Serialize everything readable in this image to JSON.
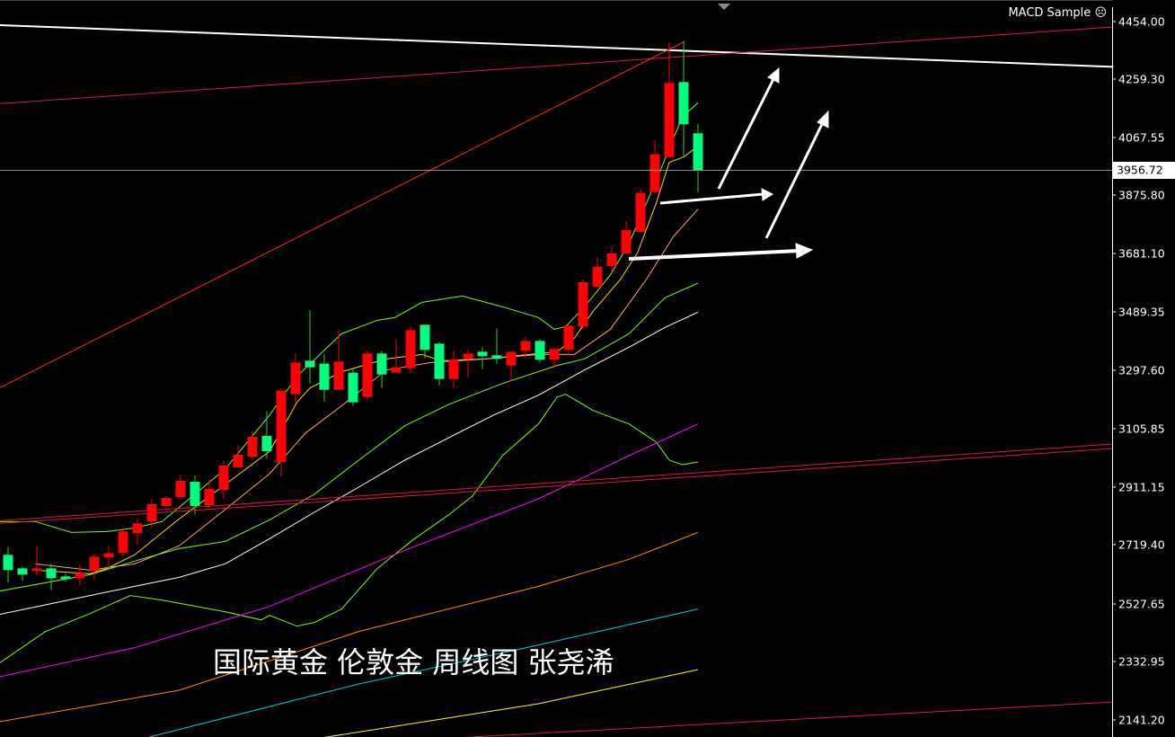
{
  "expert_label": "MACD Sample",
  "expert_icon": "sad-face-icon",
  "overlay_title": "国际黄金 伦敦金 周线图 张尧浠",
  "colors": {
    "background": "#000000",
    "bull_candle": "#ff0000",
    "bear_candle": "#00ff7f",
    "axis": "#ffffff",
    "grid_price_line": "#8c8c8c"
  },
  "chart_data": {
    "type": "candlestick",
    "title": "",
    "current_price": "3956.72",
    "y_ticks": [
      "4454.00",
      "4259.30",
      "4067.55",
      "3875.80",
      "3681.10",
      "3489.35",
      "3297.60",
      "3105.85",
      "2911.15",
      "2719.40",
      "2527.65",
      "2332.95",
      "2141.20"
    ],
    "ylim": [
      2060,
      4530
    ],
    "grid": false,
    "candles": [
      [
        2674,
        2701,
        2581,
        2623
      ],
      [
        2629,
        2635,
        2587,
        2608
      ],
      [
        2620,
        2704,
        2605,
        2629
      ],
      [
        2629,
        2644,
        2556,
        2596
      ],
      [
        2602,
        2611,
        2584,
        2593
      ],
      [
        2596,
        2644,
        2572,
        2614
      ],
      [
        2620,
        2677,
        2590,
        2668
      ],
      [
        2665,
        2704,
        2629,
        2680
      ],
      [
        2680,
        2764,
        2668,
        2752
      ],
      [
        2746,
        2797,
        2707,
        2779
      ],
      [
        2785,
        2861,
        2764,
        2843
      ],
      [
        2837,
        2870,
        2834,
        2864
      ],
      [
        2867,
        2939,
        2861,
        2921
      ],
      [
        2918,
        2939,
        2809,
        2837
      ],
      [
        2840,
        2927,
        2831,
        2894
      ],
      [
        2891,
        2987,
        2861,
        2972
      ],
      [
        2966,
        3041,
        2966,
        3008
      ],
      [
        3002,
        3087,
        2990,
        3068
      ],
      [
        3071,
        3153,
        2996,
        3020
      ],
      [
        2984,
        3231,
        2936,
        3222
      ],
      [
        3210,
        3346,
        3177,
        3316
      ],
      [
        3322,
        3490,
        3246,
        3300
      ],
      [
        3312,
        3343,
        3186,
        3225
      ],
      [
        3225,
        3427,
        3225,
        3319
      ],
      [
        3282,
        3294,
        3171,
        3183
      ],
      [
        3201,
        3355,
        3192,
        3346
      ],
      [
        3346,
        3355,
        3231,
        3276
      ],
      [
        3282,
        3394,
        3282,
        3300
      ],
      [
        3297,
        3436,
        3282,
        3424
      ],
      [
        3442,
        3442,
        3331,
        3358
      ],
      [
        3379,
        3385,
        3240,
        3261
      ],
      [
        3261,
        3355,
        3231,
        3325
      ],
      [
        3328,
        3358,
        3267,
        3346
      ],
      [
        3352,
        3367,
        3294,
        3337
      ],
      [
        3340,
        3430,
        3312,
        3328
      ],
      [
        3306,
        3352,
        3255,
        3352
      ],
      [
        3355,
        3400,
        3331,
        3388
      ],
      [
        3388,
        3394,
        3316,
        3325
      ],
      [
        3325,
        3367,
        3297,
        3361
      ],
      [
        3358,
        3442,
        3340,
        3439
      ],
      [
        3436,
        3593,
        3427,
        3584
      ],
      [
        3569,
        3668,
        3569,
        3635
      ],
      [
        3638,
        3701,
        3623,
        3680
      ],
      [
        3680,
        3788,
        3677,
        3758
      ],
      [
        3752,
        3894,
        3752,
        3882
      ],
      [
        3885,
        4059,
        3879,
        4011
      ],
      [
        4002,
        4385,
        3999,
        4249
      ],
      [
        4252,
        4388,
        4005,
        4111
      ],
      [
        4081,
        4111,
        3885,
        3956.72
      ]
    ],
    "candle_fields": [
      "open",
      "high",
      "low",
      "close"
    ],
    "indicator_lines": [
      {
        "color": "#ffd700",
        "points": [
          [
            1.9,
            2623
          ],
          [
            5.7,
            2611
          ],
          [
            6.9,
            2629
          ],
          [
            8.8,
            2674
          ],
          [
            11.9,
            2794
          ],
          [
            15.7,
            2930
          ],
          [
            18.2,
            3020
          ],
          [
            20.1,
            3183
          ],
          [
            21,
            3231
          ],
          [
            23.2,
            3285
          ],
          [
            26.3,
            3328
          ],
          [
            28.8,
            3343
          ],
          [
            30.1,
            3322
          ],
          [
            33.2,
            3328
          ],
          [
            36.9,
            3346
          ],
          [
            38.2,
            3352
          ],
          [
            39.4,
            3397
          ],
          [
            40.7,
            3487
          ],
          [
            42.6,
            3593
          ],
          [
            43.8,
            3683
          ],
          [
            45.1,
            3849
          ],
          [
            46,
            3984
          ],
          [
            47,
            4002
          ],
          [
            48,
            4038
          ]
        ]
      },
      {
        "color": "#ffa07a",
        "points": [
          [
            1.9,
            2644
          ],
          [
            5.7,
            2623
          ],
          [
            8.8,
            2644
          ],
          [
            11.9,
            2704
          ],
          [
            15.1,
            2825
          ],
          [
            18.2,
            2945
          ],
          [
            20.7,
            3081
          ],
          [
            23.2,
            3171
          ],
          [
            26.3,
            3291
          ],
          [
            29.4,
            3316
          ],
          [
            33.2,
            3328
          ],
          [
            36.9,
            3343
          ],
          [
            39.4,
            3343
          ],
          [
            41.9,
            3427
          ],
          [
            44.4,
            3593
          ],
          [
            46.3,
            3737
          ],
          [
            48,
            3828
          ]
        ]
      },
      {
        "color": "#7cfc00",
        "points": [
          [
            -0.6,
            2785
          ],
          [
            1.9,
            2785
          ],
          [
            4.4,
            2749
          ],
          [
            6.9,
            2752
          ],
          [
            8.8,
            2764
          ],
          [
            10.7,
            2785
          ],
          [
            15.1,
            2960
          ],
          [
            18.2,
            3141
          ],
          [
            20.1,
            3270
          ],
          [
            23.2,
            3412
          ],
          [
            25.7,
            3457
          ],
          [
            26.9,
            3466
          ],
          [
            28.8,
            3517
          ],
          [
            31.6,
            3538
          ],
          [
            34.4,
            3502
          ],
          [
            36.9,
            3466
          ],
          [
            38,
            3427
          ],
          [
            38.8,
            3436
          ],
          [
            40.1,
            3502
          ],
          [
            41.9,
            3608
          ],
          [
            43.2,
            3713
          ],
          [
            45.1,
            3924
          ],
          [
            46.9,
            4135
          ],
          [
            48,
            4183
          ]
        ]
      },
      {
        "color": "#7cfc00",
        "points": [
          [
            -0.6,
            2553
          ],
          [
            5.7,
            2608
          ],
          [
            8.8,
            2653
          ],
          [
            11.9,
            2695
          ],
          [
            15.1,
            2719
          ],
          [
            18.2,
            2791
          ],
          [
            21.3,
            2876
          ],
          [
            24.4,
            2990
          ],
          [
            27.6,
            3105
          ],
          [
            30.7,
            3177
          ],
          [
            34.4,
            3246
          ],
          [
            38.2,
            3306
          ],
          [
            40.1,
            3328
          ],
          [
            43.2,
            3412
          ],
          [
            45.7,
            3532
          ],
          [
            48,
            3581
          ]
        ]
      },
      {
        "color": "#ffffff",
        "points": [
          [
            -0.6,
            2475
          ],
          [
            5.7,
            2538
          ],
          [
            8.8,
            2569
          ],
          [
            11.9,
            2599
          ],
          [
            15.1,
            2644
          ],
          [
            18.2,
            2728
          ],
          [
            21.3,
            2816
          ],
          [
            24.4,
            2900
          ],
          [
            27.6,
            2990
          ],
          [
            30.7,
            3066
          ],
          [
            33.8,
            3141
          ],
          [
            36.9,
            3207
          ],
          [
            40.1,
            3291
          ],
          [
            43.2,
            3367
          ],
          [
            45.7,
            3433
          ],
          [
            48,
            3484
          ]
        ]
      },
      {
        "color": "#7cfc00",
        "points": [
          [
            -0.6,
            2313
          ],
          [
            2.6,
            2418
          ],
          [
            5.7,
            2478
          ],
          [
            8.5,
            2538
          ],
          [
            10.7,
            2523
          ],
          [
            15.1,
            2484
          ],
          [
            17.6,
            2457
          ],
          [
            18.2,
            2472
          ],
          [
            20.1,
            2436
          ],
          [
            21.3,
            2448
          ],
          [
            23.2,
            2493
          ],
          [
            25.7,
            2629
          ],
          [
            28.2,
            2725
          ],
          [
            30.7,
            2809
          ],
          [
            32.3,
            2870
          ],
          [
            34.4,
            3005
          ],
          [
            36.9,
            3111
          ],
          [
            38.2,
            3201
          ],
          [
            38.8,
            3210
          ],
          [
            40.7,
            3156
          ],
          [
            43.2,
            3111
          ],
          [
            45.1,
            3050
          ],
          [
            46,
            2990
          ],
          [
            46.9,
            2975
          ],
          [
            48,
            2984
          ]
        ]
      },
      {
        "color": "#ff00ff",
        "points": [
          [
            -0.6,
            2267
          ],
          [
            8.8,
            2364
          ],
          [
            18.2,
            2502
          ],
          [
            27.6,
            2689
          ],
          [
            36.9,
            2861
          ],
          [
            43.2,
            3005
          ],
          [
            48,
            3111
          ]
        ]
      },
      {
        "color": "#ff8c00",
        "points": [
          [
            -0.6,
            2117
          ],
          [
            11.9,
            2222
          ],
          [
            24.4,
            2418
          ],
          [
            36.9,
            2569
          ],
          [
            43.2,
            2659
          ],
          [
            48,
            2749
          ]
        ]
      },
      {
        "color": "#00ced1",
        "points": [
          [
            9.1,
            2057
          ],
          [
            24.4,
            2243
          ],
          [
            36.9,
            2373
          ],
          [
            48,
            2493
          ]
        ]
      },
      {
        "color": "#ffff00",
        "points": [
          [
            21,
            2057
          ],
          [
            36.9,
            2177
          ],
          [
            48,
            2291
          ]
        ]
      }
    ],
    "trend_lines": [
      {
        "color": "#ffffff",
        "from": [
          -0.6,
          4442
        ],
        "to": [
          76.9,
          4303
        ]
      },
      {
        "color": "#dc143c",
        "from": [
          -0.6,
          4180
        ],
        "to": [
          76.9,
          4436
        ]
      },
      {
        "color": "#ff2020",
        "from": [
          -0.6,
          3231
        ],
        "to": [
          47.1,
          4388
        ]
      },
      {
        "color": "#dc143c",
        "from": [
          -0.6,
          2788
        ],
        "to": [
          76.9,
          3044
        ]
      },
      {
        "color": "#dc143c",
        "from": [
          -0.6,
          2779
        ],
        "to": [
          76.9,
          3029
        ]
      },
      {
        "color": "#dc143c",
        "from": [
          30.7,
          2062
        ],
        "to": [
          76.9,
          2183
        ]
      }
    ]
  }
}
